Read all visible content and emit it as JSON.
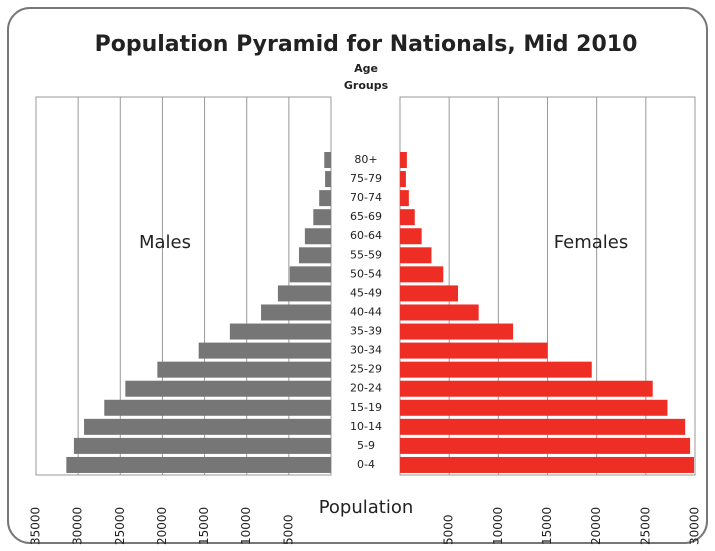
{
  "chart_data": {
    "type": "pyramid",
    "title": "Population Pyramid for Nationals, Mid 2010",
    "y_label": "Age Groups",
    "x_label": "Population",
    "categories": [
      "80+",
      "75-79",
      "70-74",
      "65-69",
      "60-64",
      "55-59",
      "50-54",
      "45-49",
      "40-44",
      "35-39",
      "30-34",
      "25-29",
      "20-24",
      "15-19",
      "10-14",
      "5-9",
      "0-4"
    ],
    "series": [
      {
        "name": "Males",
        "color": "#767676",
        "xlim": [
          0,
          35000
        ],
        "xticks": [
          35000,
          30000,
          25000,
          20000,
          15000,
          10000,
          5000
        ],
        "values": [
          800,
          700,
          1400,
          2100,
          3100,
          3800,
          4900,
          6300,
          8300,
          12000,
          15700,
          20600,
          24400,
          26900,
          29300,
          30500,
          31400
        ]
      },
      {
        "name": "Females",
        "color": "#ee2d24",
        "xlim": [
          0,
          30000
        ],
        "xticks": [
          5000,
          10000,
          15000,
          20000,
          25000,
          30000
        ],
        "values": [
          700,
          600,
          900,
          1500,
          2200,
          3200,
          4400,
          5900,
          8000,
          11500,
          15000,
          19500,
          25700,
          27200,
          29000,
          29500,
          29900
        ]
      }
    ]
  }
}
